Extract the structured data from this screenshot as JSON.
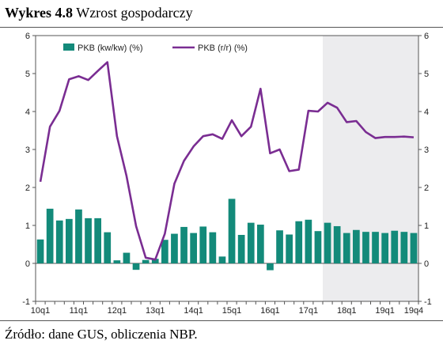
{
  "header": {
    "title_bold": "Wykres 4.8",
    "title_rest": "Wzrost gospodarczy"
  },
  "footer": {
    "source": "Źródło: dane GUS, obliczenia NBP."
  },
  "colors": {
    "bar": "#138a7a",
    "line": "#7a2d92",
    "projection_band": "#ececee",
    "axis": "#555555"
  },
  "chart_data": {
    "type": "bar+line",
    "ylim": [
      -1,
      6
    ],
    "yticks": [
      -1,
      0,
      1,
      2,
      3,
      4,
      5,
      6
    ],
    "x_labels": [
      "10q1",
      "11q1",
      "12q1",
      "13q1",
      "14q1",
      "15q1",
      "16q1",
      "17q1",
      "18q1",
      "19q1",
      "19q4"
    ],
    "x": [
      "10q1",
      "10q2",
      "10q3",
      "10q4",
      "11q1",
      "11q2",
      "11q3",
      "11q4",
      "12q1",
      "12q2",
      "12q3",
      "12q4",
      "13q1",
      "13q2",
      "13q3",
      "13q4",
      "14q1",
      "14q2",
      "14q3",
      "14q4",
      "15q1",
      "15q2",
      "15q3",
      "15q4",
      "16q1",
      "16q2",
      "16q3",
      "16q4",
      "17q1",
      "17q2",
      "17q3",
      "17q4",
      "18q1",
      "18q2",
      "18q3",
      "18q4",
      "19q1",
      "19q2",
      "19q3",
      "19q4"
    ],
    "projection_start": "17q3",
    "legend_position": "top-left",
    "series": [
      {
        "name": "PKB (kw/kw) (%)",
        "kind": "bar",
        "values": [
          0.63,
          1.44,
          1.13,
          1.17,
          1.42,
          1.19,
          1.19,
          0.82,
          0.08,
          0.28,
          -0.17,
          0.09,
          0.12,
          0.62,
          0.78,
          0.96,
          0.8,
          0.97,
          0.82,
          0.18,
          1.7,
          0.75,
          1.07,
          1.02,
          -0.18,
          0.87,
          0.76,
          1.11,
          1.15,
          0.85,
          1.07,
          0.98,
          0.8,
          0.88,
          0.83,
          0.83,
          0.8,
          0.86,
          0.83,
          0.8
        ]
      },
      {
        "name": "PKB (r/r) (%)",
        "kind": "line",
        "values": [
          2.15,
          3.6,
          4.02,
          4.85,
          4.93,
          4.83,
          5.07,
          5.3,
          3.35,
          2.3,
          0.98,
          0.15,
          0.1,
          0.78,
          2.1,
          2.7,
          3.08,
          3.35,
          3.4,
          3.28,
          3.77,
          3.35,
          3.6,
          4.6,
          2.9,
          3.0,
          2.43,
          2.47,
          4.02,
          4.0,
          4.23,
          4.1,
          3.72,
          3.75,
          3.46,
          3.3,
          3.33,
          3.33,
          3.34,
          3.32
        ]
      }
    ]
  }
}
